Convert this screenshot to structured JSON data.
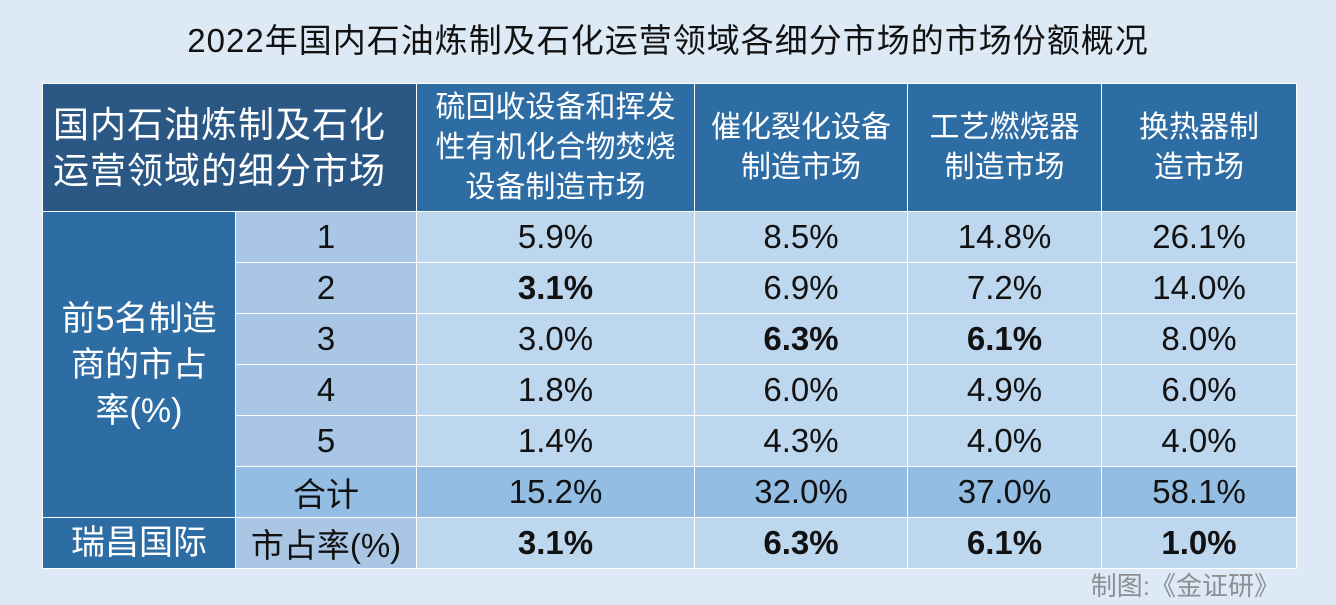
{
  "title": "2022年国内石油炼制及石化运营领域各细分市场的市场份额概况",
  "header": {
    "corner": "国内石油炼制及石化运营领域的细分市场",
    "columns": [
      "硫回收设备和挥发性有机化合物焚烧设备制造市场",
      "催化裂化设备制造市场",
      "工艺燃烧器制造市场",
      "换热器制造市场"
    ]
  },
  "group_label": "前5名制造商的市占率(%)",
  "rows": [
    {
      "rank": "1",
      "values": [
        "5.9%",
        "8.5%",
        "14.8%",
        "26.1%"
      ]
    },
    {
      "rank": "2",
      "values": [
        "3.1%",
        "6.9%",
        "7.2%",
        "14.0%"
      ]
    },
    {
      "rank": "3",
      "values": [
        "3.0%",
        "6.3%",
        "6.1%",
        "8.0%"
      ]
    },
    {
      "rank": "4",
      "values": [
        "1.8%",
        "6.0%",
        "4.9%",
        "6.0%"
      ]
    },
    {
      "rank": "5",
      "values": [
        "1.4%",
        "4.3%",
        "4.0%",
        "4.0%"
      ]
    }
  ],
  "total": {
    "label": "合计",
    "values": [
      "15.2%",
      "32.0%",
      "37.0%",
      "58.1%"
    ]
  },
  "company": {
    "name": "瑞昌国际",
    "label": "市占率(%)",
    "values": [
      "3.1%",
      "6.3%",
      "6.1%",
      "1.0%"
    ]
  },
  "credit": "制图:《金证研》",
  "colors": {
    "background": "#dde9f5",
    "header": "#2e6da4",
    "corner": "#2b5784",
    "cell": "#bdd7ee",
    "total": "#93bde3"
  }
}
